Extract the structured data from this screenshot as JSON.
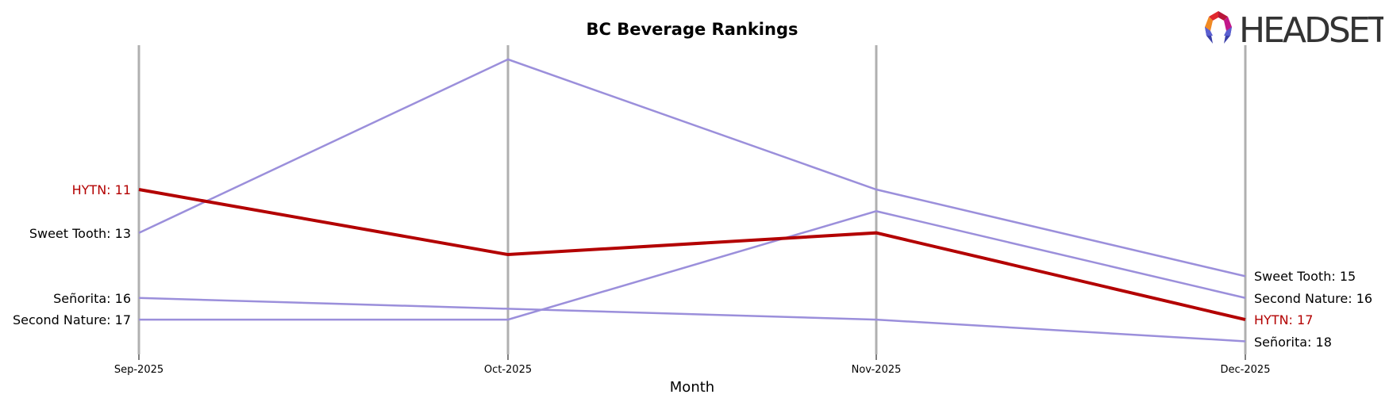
{
  "chart_data": {
    "type": "line",
    "title": "BC Beverage Rankings",
    "xlabel": "Month",
    "ylabel": "",
    "categories": [
      "Sep-2025",
      "Oct-2025",
      "Nov-2025",
      "Dec-2025"
    ],
    "y_inverted": true,
    "ylim": [
      5,
      18
    ],
    "grid": false,
    "legend": "inline labels at first and last points",
    "series": [
      {
        "name": "HYTN",
        "values": [
          11,
          14,
          13,
          17
        ],
        "color": "#b30000",
        "highlight": true
      },
      {
        "name": "Sweet Tooth",
        "values": [
          13,
          5,
          11,
          15
        ],
        "color": "#9b8fdb"
      },
      {
        "name": "Señorita",
        "values": [
          16,
          null,
          17,
          18
        ],
        "color": "#9b8fdb"
      },
      {
        "name": "Second Nature",
        "values": [
          17,
          17,
          12,
          16
        ],
        "color": "#9b8fdb"
      }
    ]
  },
  "labels": {
    "left": [
      {
        "text": "HYTN: 11",
        "color": "#b30000"
      },
      {
        "text": "Sweet Tooth: 13",
        "color": "#000000"
      },
      {
        "text": "Señorita: 16",
        "color": "#000000"
      },
      {
        "text": "Second Nature: 17",
        "color": "#000000"
      }
    ],
    "right": [
      {
        "text": "Sweet Tooth: 15",
        "color": "#000000"
      },
      {
        "text": "Second Nature: 16",
        "color": "#000000"
      },
      {
        "text": "HYTN: 17",
        "color": "#b30000"
      },
      {
        "text": "Señorita: 18",
        "color": "#000000"
      }
    ]
  },
  "logo": {
    "text": "HEADSET"
  },
  "colors": {
    "highlight": "#b30000",
    "other": "#9b8fdb",
    "axis": "#b0b0b0"
  }
}
